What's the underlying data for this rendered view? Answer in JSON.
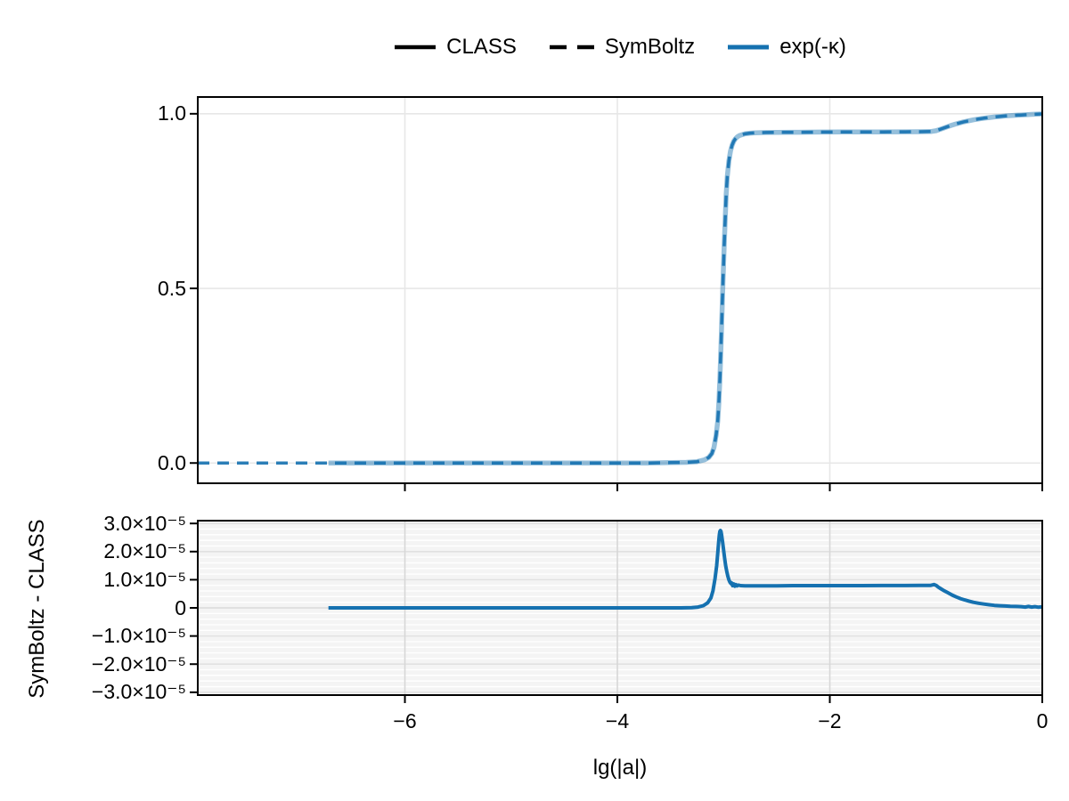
{
  "figure": {
    "background": "#ffffff"
  },
  "colors": {
    "line_blue": "#1571b0",
    "axis_black": "#000000",
    "top_grid": "#e7e7e7",
    "residual_bg": "#f4f4f4",
    "residual_grid_major": "#e1e1e1",
    "residual_grid_zero": "#d7d7d7",
    "residual_grid_vertical": "#d7d7d7",
    "residual_grid_minor": "#ffffff"
  },
  "chart_data": [
    {
      "id": "transmission",
      "type": "line",
      "title": "",
      "xlabel": "",
      "ylabel": "",
      "xlim": [
        -7.95,
        0
      ],
      "ylim": [
        -0.058,
        1.048
      ],
      "xticks": [
        -6,
        -4,
        -2,
        0
      ],
      "xtick_labels": [
        "",
        "",
        "",
        ""
      ],
      "yticks": [
        0.0,
        0.5,
        1.0
      ],
      "ytick_labels": [
        "0.0",
        "0.5",
        "1.0"
      ],
      "grid": true,
      "legend": {
        "position": "top-center",
        "entries": [
          {
            "label": "CLASS",
            "style": "solid",
            "color": "#000000"
          },
          {
            "label": "SymBoltz",
            "style": "dashed",
            "color": "#000000"
          },
          {
            "label": "exp(-κ)",
            "style": "solid",
            "color": "#1571b0"
          }
        ]
      },
      "series": [
        {
          "name": "CLASS exp(-κ)",
          "style": "solid",
          "color": "#1571b0",
          "opacity": 0.45,
          "width": 5.5,
          "points": [
            [
              -6.72,
              0
            ],
            [
              -6.4,
              0
            ],
            [
              -6.0,
              0
            ],
            [
              -5.5,
              0
            ],
            [
              -5.0,
              0
            ],
            [
              -4.5,
              0
            ],
            [
              -4.0,
              0
            ],
            [
              -3.7,
              0
            ],
            [
              -3.5,
              0.001
            ],
            [
              -3.35,
              0.002
            ],
            [
              -3.25,
              0.004
            ],
            [
              -3.18,
              0.009
            ],
            [
              -3.14,
              0.016
            ],
            [
              -3.11,
              0.027
            ],
            [
              -3.09,
              0.045
            ],
            [
              -3.07,
              0.08
            ],
            [
              -3.055,
              0.12
            ],
            [
              -3.045,
              0.17
            ],
            [
              -3.035,
              0.24
            ],
            [
              -3.025,
              0.33
            ],
            [
              -3.015,
              0.43
            ],
            [
              -3.005,
              0.53
            ],
            [
              -2.995,
              0.62
            ],
            [
              -2.985,
              0.7
            ],
            [
              -2.975,
              0.77
            ],
            [
              -2.965,
              0.82
            ],
            [
              -2.95,
              0.865
            ],
            [
              -2.935,
              0.893
            ],
            [
              -2.92,
              0.91
            ],
            [
              -2.905,
              0.921
            ],
            [
              -2.89,
              0.928
            ],
            [
              -2.87,
              0.934
            ],
            [
              -2.85,
              0.938
            ],
            [
              -2.8,
              0.9425
            ],
            [
              -2.75,
              0.9445
            ],
            [
              -2.7,
              0.9455
            ],
            [
              -2.6,
              0.9462
            ],
            [
              -2.5,
              0.9468
            ],
            [
              -2.3,
              0.9472
            ],
            [
              -2.1,
              0.9475
            ],
            [
              -1.9,
              0.9478
            ],
            [
              -1.7,
              0.948
            ],
            [
              -1.5,
              0.9482
            ],
            [
              -1.3,
              0.9484
            ],
            [
              -1.15,
              0.9487
            ],
            [
              -1.05,
              0.949
            ],
            [
              -1.0,
              0.9515
            ],
            [
              -0.97,
              0.9545
            ],
            [
              -0.94,
              0.9578
            ],
            [
              -0.9,
              0.9622
            ],
            [
              -0.86,
              0.9664
            ],
            [
              -0.82,
              0.9702
            ],
            [
              -0.78,
              0.9737
            ],
            [
              -0.74,
              0.9768
            ],
            [
              -0.7,
              0.9795
            ],
            [
              -0.65,
              0.9825
            ],
            [
              -0.6,
              0.9851
            ],
            [
              -0.55,
              0.9873
            ],
            [
              -0.5,
              0.9892
            ],
            [
              -0.45,
              0.9909
            ],
            [
              -0.4,
              0.9923
            ],
            [
              -0.35,
              0.9936
            ],
            [
              -0.3,
              0.9947
            ],
            [
              -0.25,
              0.9957
            ],
            [
              -0.2,
              0.9966
            ],
            [
              -0.15,
              0.9974
            ],
            [
              -0.1,
              0.9982
            ],
            [
              -0.05,
              0.9989
            ],
            [
              0,
              0.9995
            ]
          ]
        },
        {
          "name": "SymBoltz exp(-κ)",
          "style": "dashed",
          "color": "#1571b0",
          "opacity": 0.9,
          "width": 3.5,
          "points": [
            [
              -7.95,
              0
            ],
            [
              -7.5,
              0
            ],
            [
              -7.0,
              0
            ],
            [
              -6.72,
              0
            ],
            [
              -6.4,
              0
            ],
            [
              -6.0,
              0
            ],
            [
              -5.5,
              0
            ],
            [
              -5.0,
              0
            ],
            [
              -4.5,
              0
            ],
            [
              -4.0,
              0
            ],
            [
              -3.7,
              0
            ],
            [
              -3.5,
              0.001
            ],
            [
              -3.35,
              0.002
            ],
            [
              -3.25,
              0.004
            ],
            [
              -3.18,
              0.009
            ],
            [
              -3.14,
              0.016
            ],
            [
              -3.11,
              0.027
            ],
            [
              -3.09,
              0.045
            ],
            [
              -3.07,
              0.08
            ],
            [
              -3.055,
              0.12
            ],
            [
              -3.045,
              0.17
            ],
            [
              -3.035,
              0.24
            ],
            [
              -3.025,
              0.33
            ],
            [
              -3.015,
              0.43
            ],
            [
              -3.005,
              0.53
            ],
            [
              -2.995,
              0.62
            ],
            [
              -2.985,
              0.7
            ],
            [
              -2.975,
              0.77
            ],
            [
              -2.965,
              0.82
            ],
            [
              -2.95,
              0.865
            ],
            [
              -2.935,
              0.893
            ],
            [
              -2.92,
              0.91
            ],
            [
              -2.905,
              0.921
            ],
            [
              -2.89,
              0.928
            ],
            [
              -2.87,
              0.934
            ],
            [
              -2.85,
              0.938
            ],
            [
              -2.8,
              0.9425
            ],
            [
              -2.75,
              0.9445
            ],
            [
              -2.7,
              0.9455
            ],
            [
              -2.6,
              0.9462
            ],
            [
              -2.5,
              0.9468
            ],
            [
              -2.3,
              0.9472
            ],
            [
              -2.1,
              0.9475
            ],
            [
              -1.9,
              0.9478
            ],
            [
              -1.7,
              0.948
            ],
            [
              -1.5,
              0.9482
            ],
            [
              -1.3,
              0.9484
            ],
            [
              -1.15,
              0.9487
            ],
            [
              -1.05,
              0.949
            ],
            [
              -1.0,
              0.9515
            ],
            [
              -0.97,
              0.9545
            ],
            [
              -0.94,
              0.9578
            ],
            [
              -0.9,
              0.9622
            ],
            [
              -0.86,
              0.9664
            ],
            [
              -0.82,
              0.9702
            ],
            [
              -0.78,
              0.9737
            ],
            [
              -0.74,
              0.9768
            ],
            [
              -0.7,
              0.9795
            ],
            [
              -0.65,
              0.9825
            ],
            [
              -0.6,
              0.9851
            ],
            [
              -0.55,
              0.9873
            ],
            [
              -0.5,
              0.9892
            ],
            [
              -0.45,
              0.9909
            ],
            [
              -0.4,
              0.9923
            ],
            [
              -0.35,
              0.9936
            ],
            [
              -0.3,
              0.9947
            ],
            [
              -0.25,
              0.9957
            ],
            [
              -0.2,
              0.9966
            ],
            [
              -0.15,
              0.9974
            ],
            [
              -0.1,
              0.9982
            ],
            [
              -0.05,
              0.9989
            ],
            [
              0,
              0.9995
            ]
          ]
        }
      ]
    },
    {
      "id": "residual",
      "type": "line",
      "title": "",
      "xlabel": "lg(|a|)",
      "ylabel": "SymBoltz - CLASS",
      "xlim": [
        -7.95,
        0
      ],
      "ylim": [
        -3.1e-05,
        3.1e-05
      ],
      "xticks": [
        -6,
        -4,
        -2,
        0
      ],
      "xtick_labels": [
        "−6",
        "−4",
        "−2",
        "0"
      ],
      "yticks": [
        3e-05,
        2e-05,
        1e-05,
        0,
        -1e-05,
        -2e-05,
        -3e-05
      ],
      "ytick_labels": [
        "3.0×10⁻⁵",
        "2.0×10⁻⁵",
        "1.0×10⁻⁵",
        "0",
        "−1.0×10⁻⁵",
        "−2.0×10⁻⁵",
        "−3.0×10⁻⁵"
      ],
      "yticks_minor_step": 2e-06,
      "grid": true,
      "series": [
        {
          "name": "SymBoltz - CLASS",
          "style": "solid",
          "color": "#1571b0",
          "opacity": 1,
          "width": 4,
          "points": [
            [
              -6.72,
              0
            ],
            [
              -6.0,
              0
            ],
            [
              -5.0,
              0
            ],
            [
              -4.0,
              0
            ],
            [
              -3.6,
              0
            ],
            [
              -3.4,
              0
            ],
            [
              -3.3,
              1e-07
            ],
            [
              -3.24,
              3e-07
            ],
            [
              -3.19,
              8e-07
            ],
            [
              -3.15,
              1.8e-06
            ],
            [
              -3.12,
              3.5e-06
            ],
            [
              -3.1,
              6e-06
            ],
            [
              -3.08,
              1.05e-05
            ],
            [
              -3.065,
              1.5e-05
            ],
            [
              -3.055,
              1.95e-05
            ],
            [
              -3.045,
              2.4e-05
            ],
            [
              -3.04,
              2.6e-05
            ],
            [
              -3.035,
              2.72e-05
            ],
            [
              -3.03,
              2.75e-05
            ],
            [
              -3.025,
              2.72e-05
            ],
            [
              -3.02,
              2.62e-05
            ],
            [
              -3.01,
              2.35e-05
            ],
            [
              -3.0,
              2.05e-05
            ],
            [
              -2.99,
              1.75e-05
            ],
            [
              -2.98,
              1.5e-05
            ],
            [
              -2.97,
              1.3e-05
            ],
            [
              -2.96,
              1.13e-05
            ],
            [
              -2.95,
              1e-05
            ],
            [
              -2.94,
              9.1e-06
            ],
            [
              -2.93,
              8.6e-06
            ],
            [
              -2.925,
              8.9e-06
            ],
            [
              -2.915,
              7.9e-06
            ],
            [
              -2.905,
              8.5e-06
            ],
            [
              -2.895,
              7.7e-06
            ],
            [
              -2.885,
              8.3e-06
            ],
            [
              -2.875,
              7.8e-06
            ],
            [
              -2.86,
              8.1e-06
            ],
            [
              -2.84,
              7.9e-06
            ],
            [
              -2.8,
              7.85e-06
            ],
            [
              -2.7,
              7.8e-06
            ],
            [
              -2.6,
              7.8e-06
            ],
            [
              -2.5,
              7.85e-06
            ],
            [
              -2.3,
              7.9e-06
            ],
            [
              -2.1,
              7.9e-06
            ],
            [
              -1.9,
              7.9e-06
            ],
            [
              -1.7,
              7.9e-06
            ],
            [
              -1.5,
              7.95e-06
            ],
            [
              -1.3,
              7.95e-06
            ],
            [
              -1.15,
              8e-06
            ],
            [
              -1.05,
              8e-06
            ],
            [
              -1.02,
              8.3e-06
            ],
            [
              -1.0,
              8e-06
            ],
            [
              -0.98,
              7.4e-06
            ],
            [
              -0.955,
              6.8e-06
            ],
            [
              -0.925,
              6.1e-06
            ],
            [
              -0.89,
              5.4e-06
            ],
            [
              -0.85,
              4.6e-06
            ],
            [
              -0.81,
              3.9e-06
            ],
            [
              -0.77,
              3.3e-06
            ],
            [
              -0.73,
              2.8e-06
            ],
            [
              -0.69,
              2.4e-06
            ],
            [
              -0.65,
              2e-06
            ],
            [
              -0.6,
              1.65e-06
            ],
            [
              -0.55,
              1.35e-06
            ],
            [
              -0.5,
              1.1e-06
            ],
            [
              -0.45,
              9e-07
            ],
            [
              -0.4,
              7.5e-07
            ],
            [
              -0.35,
              6.5e-07
            ],
            [
              -0.3,
              5.5e-07
            ],
            [
              -0.25,
              5e-07
            ],
            [
              -0.2,
              4.5e-07
            ],
            [
              -0.16,
              3e-07
            ],
            [
              -0.13,
              5e-07
            ],
            [
              -0.1,
              3e-07
            ],
            [
              -0.07,
              4.5e-07
            ],
            [
              -0.04,
              2.5e-07
            ],
            [
              0,
              3.5e-07
            ]
          ]
        }
      ]
    }
  ]
}
